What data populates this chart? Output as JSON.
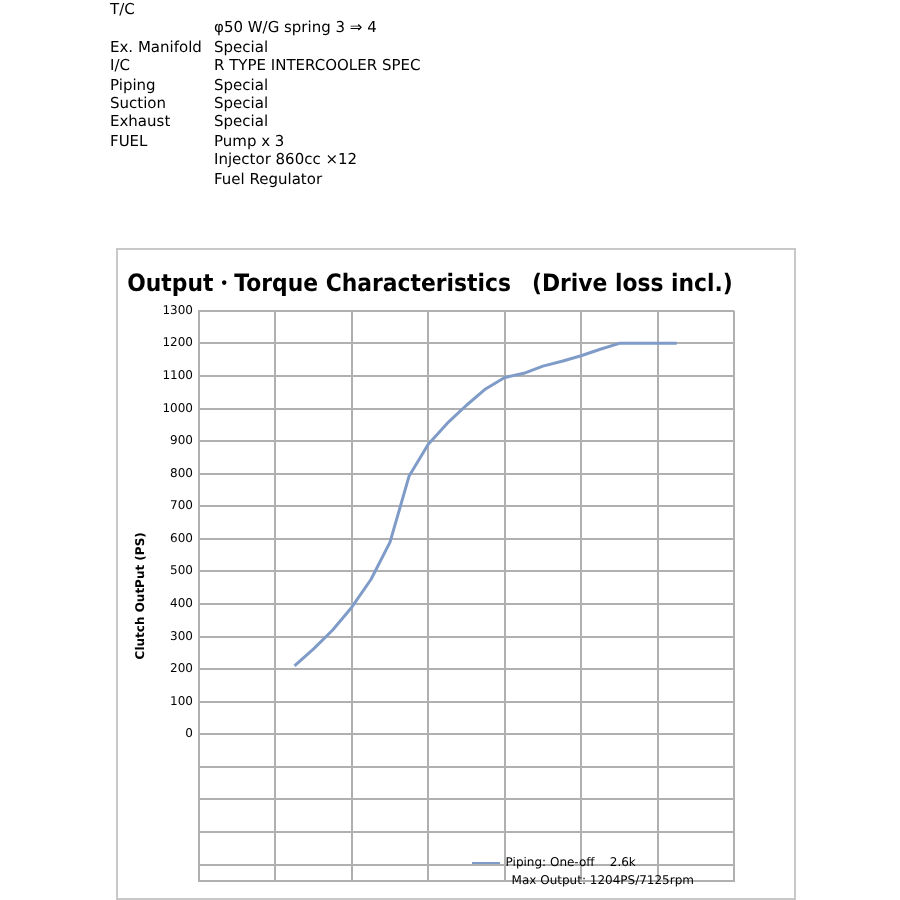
{
  "chart_data": {
    "type": "line",
    "title": "Output・Torque Characteristics　(Drive loss incl.)",
    "ylabel": "Clutch OutPut (PS)",
    "annotations": [
      "T/C\t",
      "\tφ50 W/G spring 3 ⇒ 4",
      "Ex. Manifold\tSpecial",
      "I/C\tR TYPE INTERCOOLER SPEC",
      "Piping\tSpecial",
      "Suction\tSpecial",
      "Exhaust\tSpecial",
      "FUEL\tPump x 3",
      "\tInjector 860cc ×12",
      "\tFuel Regulator",
      "Max Output: 1204PS/7125rpm"
    ],
    "categories": [
      null,
      null,
      null,
      null,
      null,
      null,
      null,
      null,
      null,
      null,
      null,
      null,
      null,
      null,
      null,
      null,
      null,
      null,
      null,
      null,
      null,
      null,
      null,
      null,
      null,
      null,
      null,
      null,
      null
    ],
    "series": [
      {
        "name": "Piping: One-off    2.6k",
        "color": "#7f9cc8",
        "values": [
          null,
          null,
          null,
          null,
          null,
          210,
          262,
          320,
          390,
          475,
          590,
          793,
          890,
          955,
          1010,
          1060,
          1095,
          1108,
          1130,
          1145,
          1162,
          1182,
          1200,
          1200,
          1200,
          1200,
          null,
          null,
          null
        ]
      }
    ],
    "ylim": [
      -450,
      1300
    ],
    "yticks": [
      {
        "value": -400,
        "label": null
      },
      {
        "value": -300,
        "label": null
      },
      {
        "value": -200,
        "label": null
      },
      {
        "value": -100,
        "label": null
      },
      0,
      100,
      200,
      300,
      400,
      500,
      600,
      700,
      800,
      900,
      1000,
      1100,
      1200,
      1300
    ],
    "tick_labels": "y",
    "grid": true,
    "legend": "bottom right",
    "marker": "none",
    "line_style": "solid"
  }
}
